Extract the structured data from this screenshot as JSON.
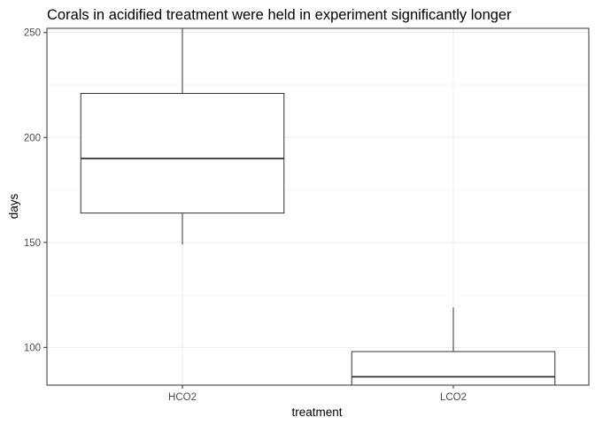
{
  "chart_data": {
    "type": "boxplot",
    "title": "Corals in acidified treatment were held in experiment significantly longer",
    "xlabel": "treatment",
    "ylabel": "days",
    "categories": [
      "HCO2",
      "LCO2"
    ],
    "boxes": [
      {
        "category": "HCO2",
        "whisker_low": 149,
        "q1": 164,
        "median": 190,
        "q3": 221,
        "whisker_high": 252
      },
      {
        "category": "LCO2",
        "whisker_low": 82,
        "q1": 82,
        "median": 86,
        "q3": 98,
        "whisker_high": 119
      }
    ],
    "ylim": [
      82,
      252
    ],
    "yticks": [
      100,
      150,
      200,
      250
    ],
    "grid": true,
    "theme": "bw",
    "colors": {
      "box_fill": "#ffffff",
      "box_stroke": "#333333",
      "grid_major": "#ebebeb",
      "grid_minor": "#f5f5f5",
      "panel_border": "#333333"
    }
  }
}
